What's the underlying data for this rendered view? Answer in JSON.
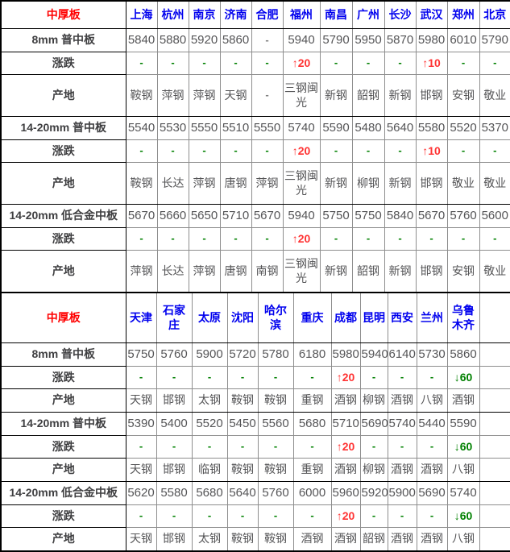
{
  "table": {
    "colors": {
      "section_title_red": "#FF0000",
      "city_link_blue": "#0000EE",
      "up_red": "#FF3333",
      "down_green": "#008000",
      "unchanged_dash_green": "#008000",
      "value_gray": "#555557",
      "grid_gray": "#8e8e8e",
      "frame_black": "#000000"
    },
    "sections": [
      {
        "title": "中厚板",
        "change_label": "涨跌",
        "origin_label": "产地",
        "cities": [
          "上海",
          "杭州",
          "南京",
          "济南",
          "合肥",
          "福州",
          "南昌",
          "广州",
          "长沙",
          "武汉",
          "郑州",
          "北京"
        ],
        "groups": [
          {
            "product": "8mm 普中板",
            "prices": [
              "5840",
              "5880",
              "5920",
              "5860",
              "-",
              "5940",
              "5790",
              "5950",
              "5870",
              "5980",
              "6010",
              "5790"
            ],
            "changes": [
              "-",
              "-",
              "-",
              "-",
              "-",
              "↑20",
              "-",
              "-",
              "-",
              "↑10",
              "-",
              "-"
            ],
            "origins": [
              "鞍钢",
              "萍钢",
              "萍钢",
              "天钢",
              "-",
              "三钢闽光",
              "新钢",
              "韶钢",
              "新钢",
              "邯钢",
              "安钢",
              "敬业"
            ]
          },
          {
            "product": "14-20mm 普中板",
            "prices": [
              "5540",
              "5530",
              "5550",
              "5510",
              "5550",
              "5740",
              "5590",
              "5480",
              "5640",
              "5580",
              "5520",
              "5370"
            ],
            "changes": [
              "-",
              "-",
              "-",
              "-",
              "-",
              "↑20",
              "-",
              "-",
              "-",
              "↑10",
              "-",
              "-"
            ],
            "origins": [
              "鞍钢",
              "长达",
              "萍钢",
              "唐钢",
              "萍钢",
              "三钢闽光",
              "新钢",
              "柳钢",
              "新钢",
              "邯钢",
              "敬业",
              "敬业"
            ]
          },
          {
            "product": "14-20mm 低合金中板",
            "prices": [
              "5670",
              "5660",
              "5650",
              "5710",
              "5670",
              "5940",
              "5750",
              "5750",
              "5840",
              "5670",
              "5760",
              "5600"
            ],
            "changes": [
              "-",
              "-",
              "-",
              "-",
              "-",
              "↑20",
              "-",
              "-",
              "-",
              "-",
              "-",
              "-"
            ],
            "origins": [
              "萍钢",
              "长达",
              "萍钢",
              "唐钢",
              "南钢",
              "三钢闽光",
              "新钢",
              "韶钢",
              "新钢",
              "邯钢",
              "安钢",
              "敬业"
            ]
          }
        ]
      },
      {
        "title": "中厚板",
        "change_label": "涨跌",
        "origin_label": "产地",
        "cities": [
          "天津",
          "石家庄",
          "太原",
          "沈阳",
          "哈尔滨",
          "重庆",
          "成都",
          "昆明",
          "西安",
          "兰州",
          "乌鲁木齐",
          ""
        ],
        "groups": [
          {
            "product": "8mm 普中板",
            "prices": [
              "5750",
              "5760",
              "5900",
              "5720",
              "5780",
              "6180",
              "5980",
              "5940",
              "6140",
              "5730",
              "5860",
              ""
            ],
            "changes": [
              "-",
              "-",
              "-",
              "-",
              "-",
              "-",
              "↑20",
              "-",
              "-",
              "-",
              "↓60",
              ""
            ],
            "origins": [
              "天钢",
              "邯钢",
              "太钢",
              "鞍钢",
              "鞍钢",
              "重钢",
              "酒钢",
              "柳钢",
              "酒钢",
              "八钢",
              "酒钢",
              ""
            ]
          },
          {
            "product": "14-20mm 普中板",
            "prices": [
              "5390",
              "5400",
              "5520",
              "5450",
              "5560",
              "5680",
              "5710",
              "5690",
              "5740",
              "5440",
              "5590",
              ""
            ],
            "changes": [
              "-",
              "-",
              "-",
              "-",
              "-",
              "-",
              "↑20",
              "-",
              "-",
              "-",
              "↓60",
              ""
            ],
            "origins": [
              "天钢",
              "邯钢",
              "临钢",
              "鞍钢",
              "鞍钢",
              "重钢",
              "酒钢",
              "柳钢",
              "酒钢",
              "酒钢",
              "八钢",
              ""
            ]
          },
          {
            "product": "14-20mm 低合金中板",
            "prices": [
              "5620",
              "5580",
              "5680",
              "5640",
              "5760",
              "6000",
              "5960",
              "5920",
              "5900",
              "5690",
              "5740",
              ""
            ],
            "changes": [
              "-",
              "-",
              "-",
              "-",
              "-",
              "-",
              "↑20",
              "-",
              "-",
              "-",
              "↓60",
              ""
            ],
            "origins": [
              "天钢",
              "邯钢",
              "太钢",
              "鞍钢",
              "鞍钢",
              "酒钢",
              "酒钢",
              "韶钢",
              "酒钢",
              "酒钢",
              "八钢",
              ""
            ]
          }
        ]
      }
    ]
  }
}
